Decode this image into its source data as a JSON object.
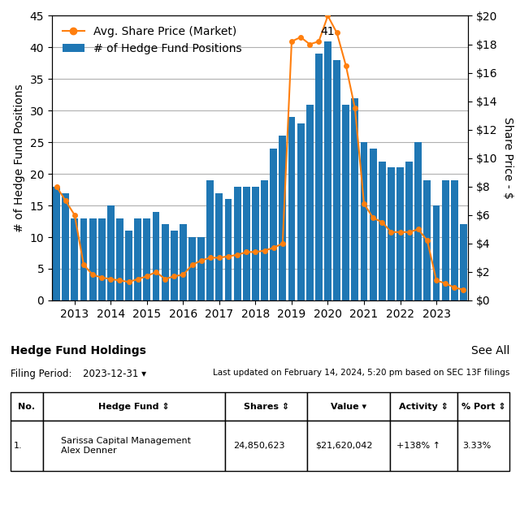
{
  "chart_data": {
    "type": "bar",
    "categories": [
      null,
      null,
      "2013",
      null,
      null,
      null,
      "2014",
      null,
      null,
      null,
      "2015",
      null,
      null,
      null,
      "2016",
      null,
      null,
      null,
      "2017",
      null,
      null,
      null,
      "2018",
      null,
      null,
      null,
      "2019",
      null,
      null,
      null,
      "2020",
      null,
      null,
      null,
      "2021",
      null,
      null,
      null,
      "2022",
      null,
      null,
      null,
      "2023",
      null,
      null,
      null
    ],
    "series": [
      {
        "name": "# of Hedge Fund Positions",
        "type": "bar",
        "values": [
          18,
          17,
          13,
          13,
          13,
          13,
          15,
          13,
          11,
          13,
          13,
          14,
          12,
          11,
          12,
          10,
          10,
          19,
          17,
          16,
          18,
          18,
          18,
          19,
          24,
          26,
          29,
          28,
          31,
          39,
          41,
          38,
          31,
          32,
          25,
          24,
          22,
          21,
          21,
          22,
          25,
          19,
          15,
          19,
          19,
          12
        ]
      },
      {
        "name": "Avg. Share Price (Market)",
        "type": "line",
        "axis": "y2",
        "marker": "o",
        "values": [
          8.0,
          7.0,
          6.0,
          2.5,
          1.8,
          1.6,
          1.5,
          1.4,
          1.3,
          1.5,
          1.7,
          2.0,
          1.5,
          1.7,
          1.8,
          2.5,
          2.8,
          3.0,
          3.0,
          3.1,
          3.2,
          3.4,
          3.4,
          3.5,
          3.7,
          4.0,
          18.2,
          18.5,
          18.0,
          18.2,
          20.0,
          18.8,
          16.5,
          13.5,
          6.8,
          5.8,
          5.5,
          4.8,
          4.8,
          4.8,
          5.0,
          4.2,
          1.4,
          1.2,
          0.9,
          0.75
        ]
      }
    ],
    "y_label": "# of Hedge Fund Positions",
    "y2_label": "Share Price - $",
    "ylim": [
      0,
      45
    ],
    "yticks": [
      0,
      5,
      10,
      15,
      20,
      25,
      30,
      35,
      40,
      45
    ],
    "y2lim": [
      0,
      20
    ],
    "y2ticks": [
      {
        "value": 0,
        "label": "$0"
      },
      {
        "value": 2,
        "label": "$2"
      },
      {
        "value": 4,
        "label": "$4"
      },
      {
        "value": 6,
        "label": "$6"
      },
      {
        "value": 8,
        "label": "$8"
      },
      {
        "value": 10,
        "label": "$10"
      },
      {
        "value": 12,
        "label": "$12"
      },
      {
        "value": 14,
        "label": "$14"
      },
      {
        "value": 16,
        "label": "$16"
      },
      {
        "value": 18,
        "label": "$18"
      },
      {
        "value": 20,
        "label": "$20"
      }
    ],
    "annotations": [
      {
        "text": "41",
        "x": 30,
        "y": 41
      }
    ],
    "grid": true,
    "legend": "upper left",
    "notes": [
      "Hedge Fund Holdings",
      "See All",
      "Filing Period:",
      "2023-12-31 ▾",
      "Last updated on February 14, 2024, 5:20 pm based on SEC 13F filings"
    ],
    "table": {
      "columns": [
        "No.",
        "Hedge Fund ⇕",
        "Shares ⇕",
        "Value ▾",
        "Activity ⇕",
        "% Port ⇕"
      ],
      "rows": [
        [
          "1.",
          "Sarissa Capital Management\nAlex Denner",
          "24,850,623",
          "$21,620,042",
          "+138% ↑",
          "3.33%"
        ]
      ]
    }
  }
}
